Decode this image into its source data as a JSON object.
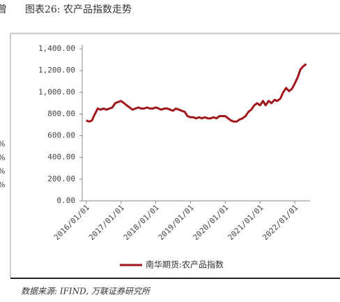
{
  "header_fragment": "曾",
  "left_fragments": [
    "%",
    "%",
    "%",
    "%"
  ],
  "source": "数据来源: IFIND, 万联证券研究所",
  "chart_data": {
    "type": "line",
    "title": "图表26: 农产品指数走势",
    "x": [
      "2016/01/01",
      "2016/02/01",
      "2016/03/01",
      "2016/04/01",
      "2016/05/01",
      "2016/06/01",
      "2016/07/01",
      "2016/08/01",
      "2016/09/01",
      "2016/10/01",
      "2016/11/01",
      "2016/12/01",
      "2017/01/01",
      "2017/02/01",
      "2017/03/01",
      "2017/04/01",
      "2017/05/01",
      "2017/06/01",
      "2017/07/01",
      "2017/08/01",
      "2017/09/01",
      "2017/10/01",
      "2017/11/01",
      "2017/12/01",
      "2018/01/01",
      "2018/02/01",
      "2018/03/01",
      "2018/04/01",
      "2018/05/01",
      "2018/06/01",
      "2018/07/01",
      "2018/08/01",
      "2018/09/01",
      "2018/10/01",
      "2018/11/01",
      "2018/12/01",
      "2019/01/01",
      "2019/02/01",
      "2019/03/01",
      "2019/04/01",
      "2019/05/01",
      "2019/06/01",
      "2019/07/01",
      "2019/08/01",
      "2019/09/01",
      "2019/10/01",
      "2019/11/01",
      "2019/12/01",
      "2020/01/01",
      "2020/02/01",
      "2020/03/01",
      "2020/04/01",
      "2020/05/01",
      "2020/06/01",
      "2020/07/01",
      "2020/08/01",
      "2020/09/01",
      "2020/10/01",
      "2020/11/01",
      "2020/12/01",
      "2021/01/01",
      "2021/02/01",
      "2021/03/01",
      "2021/04/01",
      "2021/05/01",
      "2021/06/01",
      "2021/07/01",
      "2021/08/01",
      "2021/09/01",
      "2021/10/01",
      "2021/11/01",
      "2021/12/01",
      "2022/01/01",
      "2022/02/01",
      "2022/03/01",
      "2022/04/01",
      "2022/05/01"
    ],
    "series": [
      {
        "name": "南华期货:农产品指数",
        "color": "#a0161b",
        "values": [
          740,
          730,
          740,
          800,
          850,
          840,
          850,
          840,
          850,
          860,
          900,
          910,
          920,
          900,
          880,
          860,
          840,
          850,
          860,
          850,
          850,
          860,
          850,
          850,
          860,
          850,
          840,
          850,
          850,
          840,
          830,
          850,
          840,
          830,
          820,
          780,
          770,
          770,
          760,
          770,
          760,
          770,
          760,
          760,
          770,
          760,
          780,
          780,
          780,
          760,
          740,
          730,
          730,
          750,
          760,
          780,
          820,
          840,
          880,
          900,
          880,
          920,
          880,
          920,
          900,
          930,
          920,
          940,
          1000,
          1040,
          1010,
          1030,
          1080,
          1140,
          1210,
          1240,
          1260
        ]
      }
    ],
    "xlim": [
      "2015/11/20",
      "2022/06/10"
    ],
    "xticks": [
      "2016/01/01",
      "2017/01/01",
      "2018/01/01",
      "2019/01/01",
      "2020/01/01",
      "2021/01/01",
      "2022/01/01"
    ],
    "ylim": [
      0,
      1400
    ],
    "yticks": [
      {
        "value": 0,
        "label": "0.00"
      },
      {
        "value": 200,
        "label": "200.00"
      },
      {
        "value": 400,
        "label": "400.00"
      },
      {
        "value": 600,
        "label": "600.00"
      },
      {
        "value": 800,
        "label": "800.00"
      },
      {
        "value": 1000,
        "label": "1,000.00"
      },
      {
        "value": 1200,
        "label": "1,200.00"
      },
      {
        "value": 1400,
        "label": "1,400.00"
      }
    ]
  }
}
